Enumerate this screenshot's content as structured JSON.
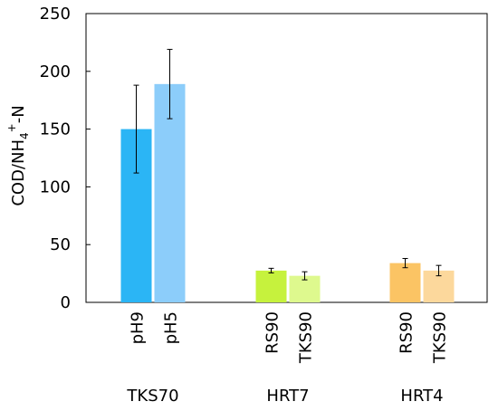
{
  "chart_data": {
    "type": "bar",
    "ylabel_parts": {
      "base": "COD/NH",
      "sub": "4",
      "sup": "+",
      "suffix": "-N"
    },
    "ylim": [
      0,
      250
    ],
    "yticks": [
      0,
      50,
      100,
      150,
      200,
      250
    ],
    "grid": false,
    "groups": [
      {
        "label": "TKS70",
        "bars": [
          {
            "category": "pH9",
            "value": 150,
            "error": 38,
            "color": "#2bb5f5"
          },
          {
            "category": "pH5",
            "value": 189,
            "error": 30,
            "color": "#8ccdfa"
          }
        ]
      },
      {
        "label": "HRT7",
        "bars": [
          {
            "category": "RS90",
            "value": 27.5,
            "error": 2,
            "color": "#c6f23d"
          },
          {
            "category": "TKS90",
            "value": 23,
            "error": 3.5,
            "color": "#def98e"
          }
        ]
      },
      {
        "label": "HRT4",
        "bars": [
          {
            "category": "RS90",
            "value": 34,
            "error": 4,
            "color": "#fbc464"
          },
          {
            "category": "TKS90",
            "value": 27.5,
            "error": 4.5,
            "color": "#fcd89c"
          }
        ]
      }
    ]
  }
}
